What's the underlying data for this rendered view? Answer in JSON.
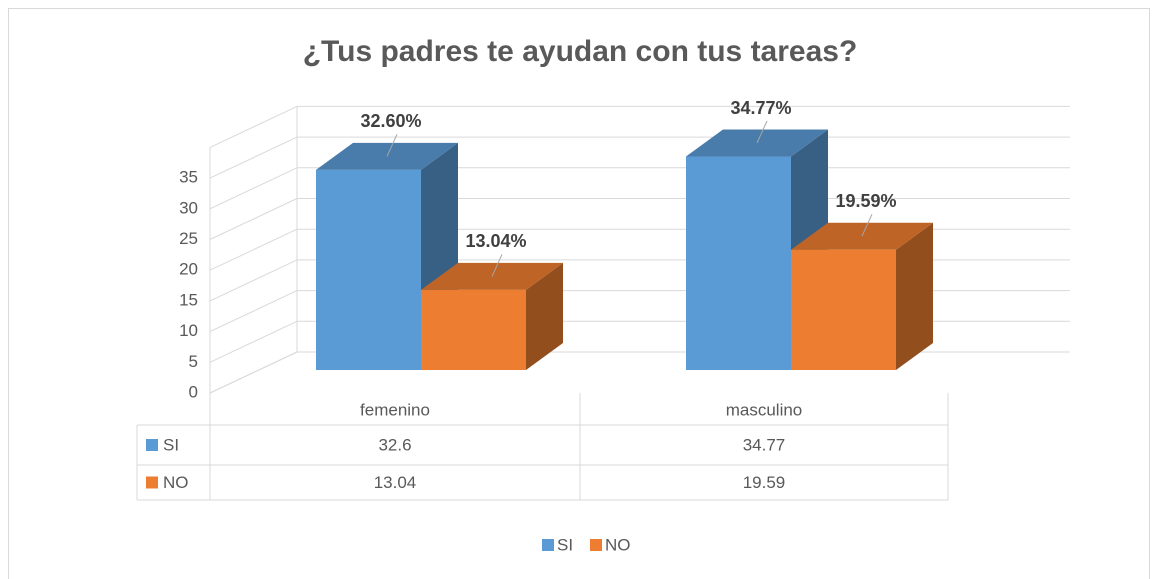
{
  "chart_data": {
    "type": "bar3d",
    "title": "¿Tus padres te ayudan con tus tareas?",
    "categories": [
      "femenino",
      "masculino"
    ],
    "series": [
      {
        "name": "SI",
        "color": "#5b9bd5",
        "values": [
          32.6,
          34.77
        ],
        "value_labels": [
          "32.60%",
          "34.77%"
        ]
      },
      {
        "name": "NO",
        "color": "#ed7d31",
        "values": [
          13.04,
          19.59
        ],
        "value_labels": [
          "13.04%",
          "19.59%"
        ]
      }
    ],
    "ylim": [
      0,
      40
    ],
    "yticks": [
      0,
      5,
      10,
      15,
      20,
      25,
      30,
      35
    ],
    "grid": true,
    "data_table": true,
    "legend": "bottom"
  }
}
